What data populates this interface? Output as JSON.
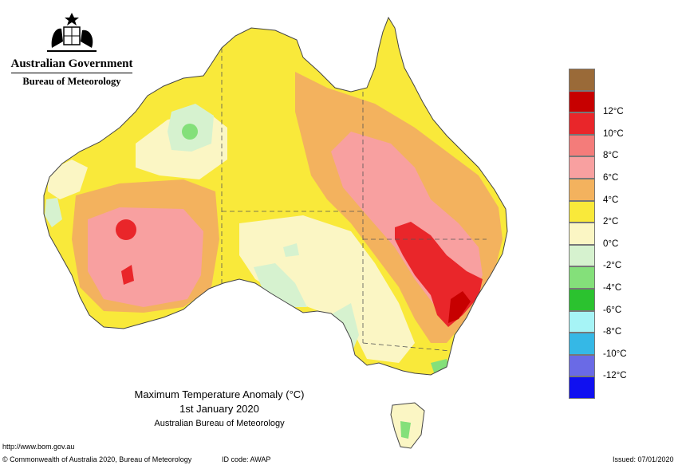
{
  "header": {
    "government": "Australian Government",
    "agency": "Bureau of Meteorology"
  },
  "map": {
    "title": "Maximum Temperature Anomaly (°C)",
    "date": "1st January 2020",
    "source": "Australian Bureau of Meteorology"
  },
  "legend": {
    "items": [
      {
        "label": "",
        "color": "#9a6a38"
      },
      {
        "label": "12°C",
        "color": "#c70000"
      },
      {
        "label": "10°C",
        "color": "#e9262a"
      },
      {
        "label": "8°C",
        "color": "#f47c7a"
      },
      {
        "label": "6°C",
        "color": "#f8a0a0"
      },
      {
        "label": "4°C",
        "color": "#f3b25e"
      },
      {
        "label": "2°C",
        "color": "#f9e93a"
      },
      {
        "label": "0°C",
        "color": "#fbf6c4"
      },
      {
        "label": "-2°C",
        "color": "#d6f2cf"
      },
      {
        "label": "-4°C",
        "color": "#84e07a"
      },
      {
        "label": "-6°C",
        "color": "#2bc22f"
      },
      {
        "label": "-8°C",
        "color": "#a6f4f6"
      },
      {
        "label": "-10°C",
        "color": "#35b8e6"
      },
      {
        "label": "-12°C",
        "color": "#6a6ae6"
      },
      {
        "label": "",
        "color": "#1010f0"
      }
    ]
  },
  "footer": {
    "url": "http://www.bom.gov.au",
    "copyright": "© Commonwealth of Australia 2020, Bureau of Meteorology",
    "id_code": "ID code: AWAP",
    "issued": "Issued: 07/01/2020"
  }
}
